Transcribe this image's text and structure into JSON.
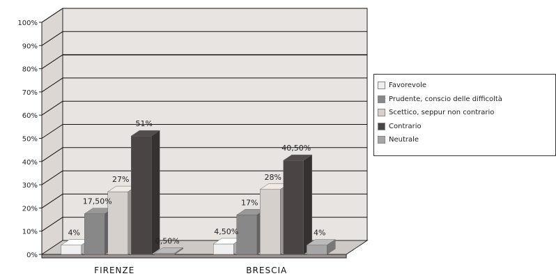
{
  "chart_data": {
    "type": "bar",
    "categories": [
      "FIRENZE",
      "BRESCIA"
    ],
    "series": [
      {
        "name": "Favorevole",
        "values": [
          4,
          4.5
        ],
        "labels": [
          "4%",
          "4,50%"
        ],
        "color": "#efefef"
      },
      {
        "name": "Prudente, conscio delle difficoltà",
        "values": [
          17.5,
          17
        ],
        "labels": [
          "17,50%",
          "17%"
        ],
        "color": "#888888"
      },
      {
        "name": "Scettico, seppur non contrario",
        "values": [
          27,
          28
        ],
        "labels": [
          "27%",
          "28%"
        ],
        "color": "#d6d0cc"
      },
      {
        "name": "Contrario",
        "values": [
          51,
          40.5
        ],
        "labels": [
          "51%",
          "40,50%"
        ],
        "color": "#4a4444"
      },
      {
        "name": "Neutrale",
        "values": [
          0.5,
          4
        ],
        "labels": [
          "0,50%",
          "4%"
        ],
        "color": "#a6a6a6"
      }
    ],
    "yticks": [
      "0%",
      "10%",
      "20%",
      "30%",
      "40%",
      "50%",
      "60%",
      "70%",
      "80%",
      "90%",
      "100%"
    ],
    "ylim": [
      0,
      100
    ],
    "grid": true,
    "legend_position": "right",
    "title": "",
    "xlabel": "",
    "ylabel": ""
  }
}
